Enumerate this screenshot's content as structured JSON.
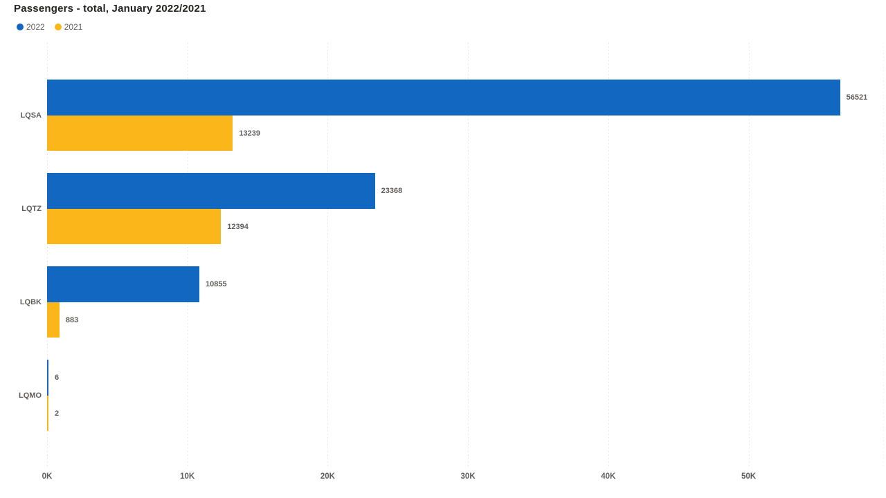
{
  "title": "Passengers - total, January 2022/2021",
  "legend": {
    "items": [
      {
        "label": "2022",
        "color": "#1267c1"
      },
      {
        "label": "2021",
        "color": "#fbb719"
      }
    ]
  },
  "colors": {
    "series_2022": "#1267c1",
    "series_2021": "#fbb719",
    "gridline": "#e2e2e2",
    "label_text": "#605e5c",
    "title_text": "#252423"
  },
  "chart_data": {
    "type": "bar",
    "orientation": "horizontal",
    "title": "Passengers - total, January 2022/2021",
    "categories": [
      "LQSA",
      "LQTZ",
      "LQBK",
      "LQMO"
    ],
    "series": [
      {
        "name": "2022",
        "color": "#1267c1",
        "values": [
          56521,
          23368,
          10855,
          6
        ]
      },
      {
        "name": "2021",
        "color": "#fbb719",
        "values": [
          13239,
          12394,
          883,
          2
        ]
      }
    ],
    "data_labels_visible": true,
    "x_axis": {
      "tick_labels": [
        "0K",
        "10K",
        "20K",
        "30K",
        "40K",
        "50K"
      ],
      "tick_values": [
        0,
        10000,
        20000,
        30000,
        40000,
        50000
      ],
      "range": [
        0,
        59650
      ]
    },
    "grid": "dotted-vertical",
    "legend_position": "top-left"
  }
}
